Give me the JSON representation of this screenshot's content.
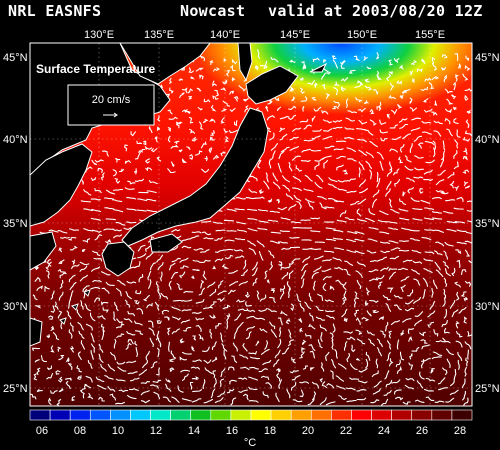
{
  "header": {
    "source": "NRL EASNFS",
    "run": "Nowcast",
    "valid": "valid at 2003/08/20 12Z"
  },
  "map": {
    "field_label": "Surface Temperature",
    "scale_label": "20 cm/s",
    "lon_ticks": [
      "130°E",
      "135°E",
      "140°E",
      "145°E",
      "150°E",
      "155°E"
    ],
    "lat_ticks": [
      "45°N",
      "40°N",
      "35°N",
      "30°N",
      "25°N"
    ]
  },
  "colorbar": {
    "unit": "°C",
    "tick_labels": [
      "06",
      "08",
      "10",
      "12",
      "14",
      "16",
      "18",
      "20",
      "22",
      "24",
      "26",
      "28"
    ],
    "colors": [
      "#00007a",
      "#0000b5",
      "#0022ee",
      "#0055ff",
      "#0090ff",
      "#00c8ff",
      "#00e8c8",
      "#00d070",
      "#10c020",
      "#60d800",
      "#c8f000",
      "#ffff00",
      "#ffd000",
      "#ffa000",
      "#ff7000",
      "#ff3000",
      "#ff0000",
      "#dd0000",
      "#b00000",
      "#880000",
      "#600000",
      "#3c0000"
    ]
  },
  "colors": {
    "background": "#000000",
    "land": "#000000",
    "coast": "#ffffff",
    "vectors": "#ffffff"
  }
}
